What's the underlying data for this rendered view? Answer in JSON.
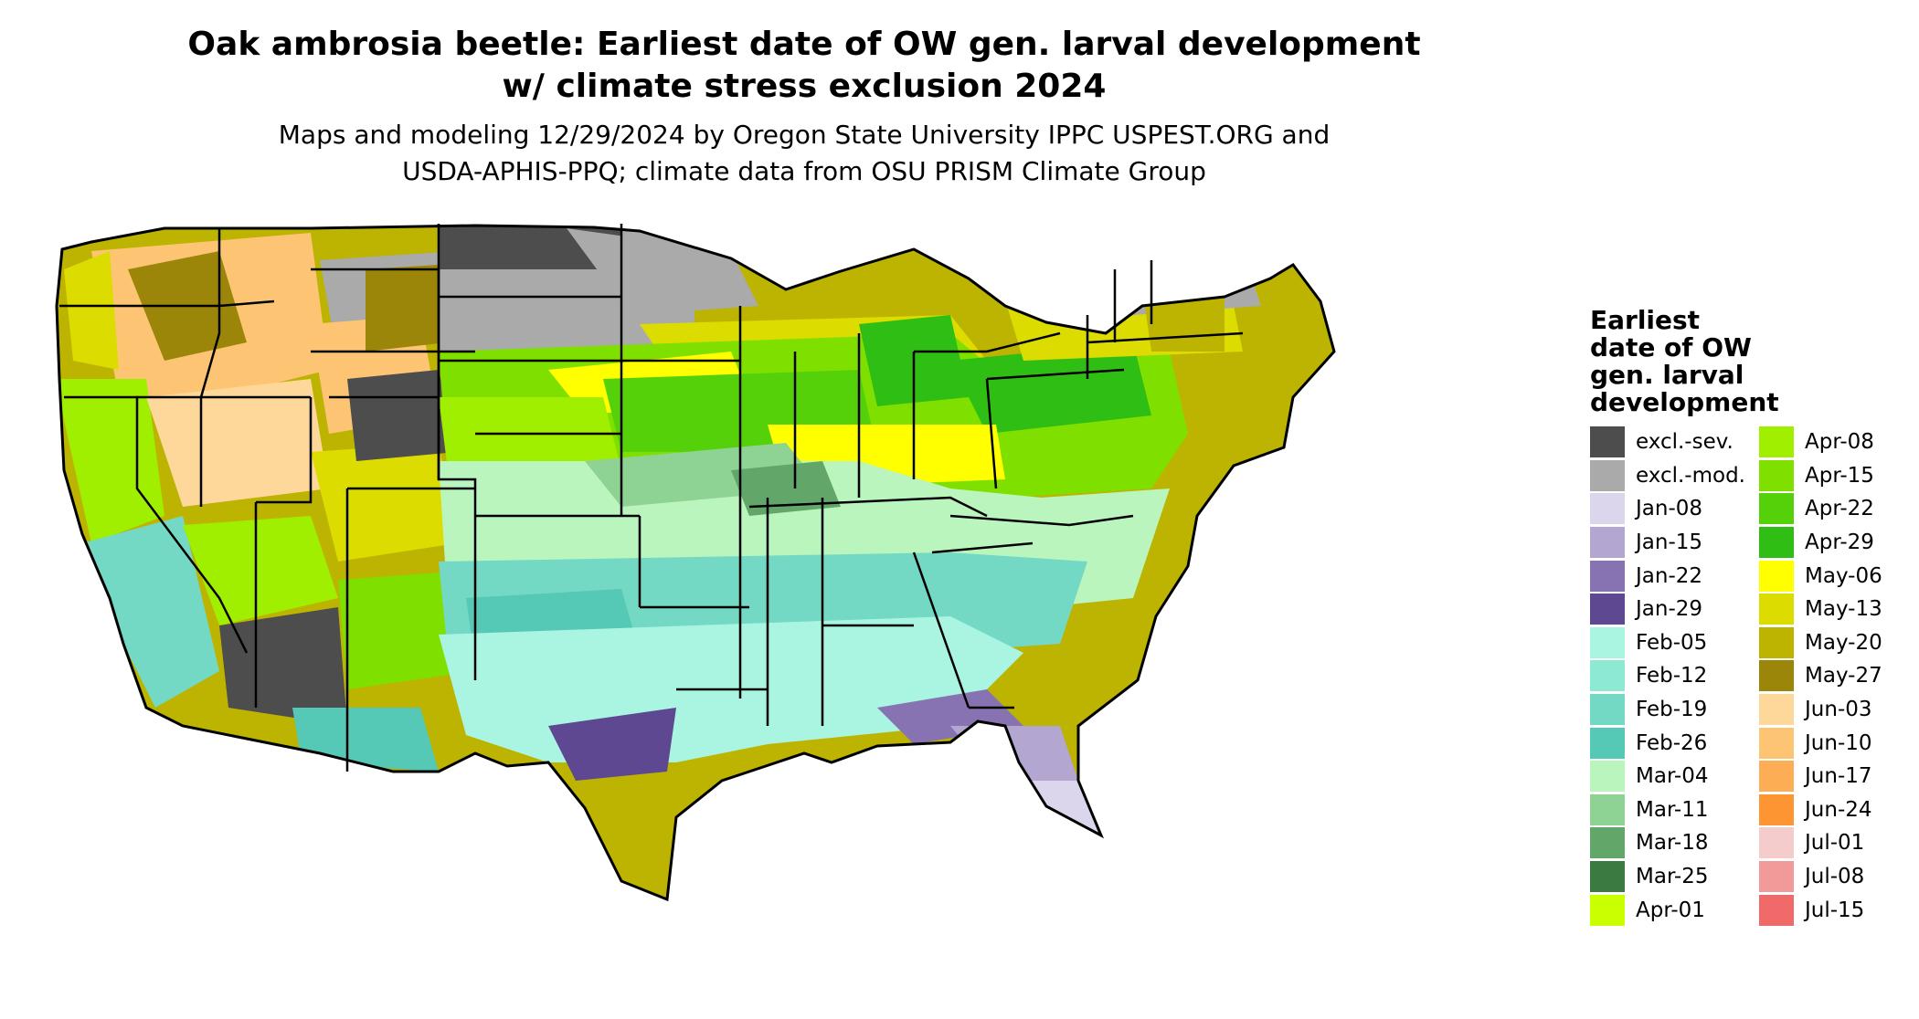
{
  "title_line1": "Oak ambrosia beetle: Earliest date of OW gen. larval development",
  "title_line2": "w/ climate stress exclusion 2024",
  "subtitle_line1": "Maps and modeling 12/29/2024 by Oregon State University IPPC USPEST.ORG and",
  "subtitle_line2": "USDA-APHIS-PPQ; climate data from OSU PRISM Climate Group",
  "legend_title_lines": [
    "Earliest",
    "date of OW",
    "gen. larval",
    "development"
  ],
  "legend": [
    {
      "label": "excl.-sev.",
      "color": "#4d4d4d"
    },
    {
      "label": "excl.-mod.",
      "color": "#aaaaaa"
    },
    {
      "label": "Jan-08",
      "color": "#dcd6ec"
    },
    {
      "label": "Jan-15",
      "color": "#b3a6d0"
    },
    {
      "label": "Jan-22",
      "color": "#8773b2"
    },
    {
      "label": "Jan-29",
      "color": "#5e4891"
    },
    {
      "label": "Feb-05",
      "color": "#a9f5e1"
    },
    {
      "label": "Feb-12",
      "color": "#8ee9d2"
    },
    {
      "label": "Feb-19",
      "color": "#73d9c4"
    },
    {
      "label": "Feb-26",
      "color": "#55c8b6"
    },
    {
      "label": "Mar-04",
      "color": "#b9f5bd"
    },
    {
      "label": "Mar-11",
      "color": "#8fd394"
    },
    {
      "label": "Mar-18",
      "color": "#63a66a"
    },
    {
      "label": "Mar-25",
      "color": "#3b7b42"
    },
    {
      "label": "Apr-01",
      "color": "#c9ff00"
    },
    {
      "label": "Apr-08",
      "color": "#a0ee00"
    },
    {
      "label": "Apr-15",
      "color": "#7fe000"
    },
    {
      "label": "Apr-22",
      "color": "#55d10a"
    },
    {
      "label": "Apr-29",
      "color": "#2ebe14"
    },
    {
      "label": "May-06",
      "color": "#ffff00"
    },
    {
      "label": "May-13",
      "color": "#dcdc00"
    },
    {
      "label": "May-20",
      "color": "#bcb400"
    },
    {
      "label": "May-27",
      "color": "#9c860a"
    },
    {
      "label": "Jun-03",
      "color": "#fdd89a"
    },
    {
      "label": "Jun-10",
      "color": "#fdc474"
    },
    {
      "label": "Jun-17",
      "color": "#fdae55"
    },
    {
      "label": "Jun-24",
      "color": "#fd9632"
    },
    {
      "label": "Jul-01",
      "color": "#f4cccc"
    },
    {
      "label": "Jul-08",
      "color": "#f29a9a"
    },
    {
      "label": "Jul-15",
      "color": "#f06a6a"
    }
  ]
}
